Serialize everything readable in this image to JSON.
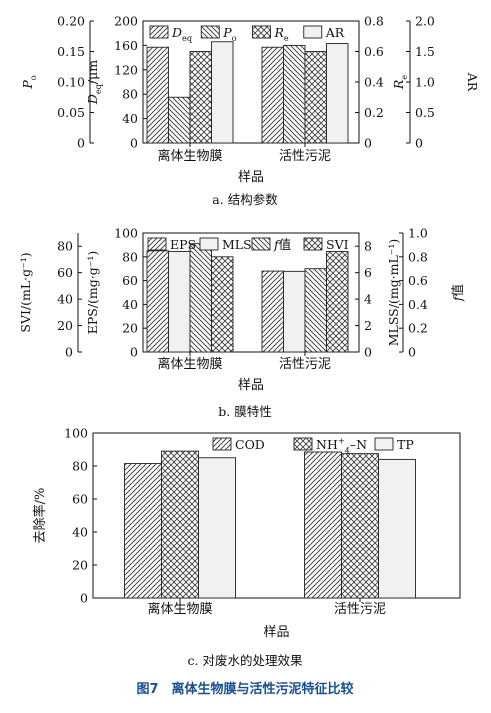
{
  "colors": {
    "caption": "#1a4f8f",
    "axis": "#111111",
    "gridline": "#999999"
  },
  "chart_data": [
    {
      "type": "bar",
      "panel_label": "a. 结构参数",
      "xlabel": "样品",
      "categories": [
        "离体生物膜",
        "活性污泥"
      ],
      "axes": [
        {
          "id": "Po",
          "label": "Po",
          "label_main": "P",
          "label_sub": "o",
          "side": "left-outer",
          "ylim": [
            0,
            0.2
          ],
          "ticks": [
            "0",
            "0.05",
            "0.10",
            "0.15",
            "0.20"
          ]
        },
        {
          "id": "Deq",
          "label": "Deq/μm",
          "label_main": "D",
          "label_sub": "eq",
          "label_tail": "/μm",
          "side": "left-inner",
          "ylim": [
            0,
            200
          ],
          "ticks": [
            "0",
            "40",
            "80",
            "120",
            "160",
            "200"
          ]
        },
        {
          "id": "Re",
          "label": "Re",
          "label_main": "R",
          "label_sub": "e",
          "side": "right-inner",
          "ylim": [
            0,
            0.8
          ],
          "ticks": [
            "0",
            "0.2",
            "0.4",
            "0.6",
            "0.8"
          ]
        },
        {
          "id": "AR",
          "label": "AR",
          "side": "right-outer",
          "ylim": [
            0,
            2.0
          ],
          "ticks": [
            "0",
            "0.5",
            "1.0",
            "1.5",
            "2.0"
          ]
        }
      ],
      "series": [
        {
          "name": "Deq",
          "name_main": "D",
          "name_sub": "eq",
          "axis": "Deq",
          "pattern": "hatch-right",
          "values": [
            157,
            157
          ]
        },
        {
          "name": "Po",
          "name_main": "P",
          "name_sub": "o",
          "axis": "Po",
          "pattern": "hatch-left",
          "values": [
            0.075,
            0.16
          ]
        },
        {
          "name": "Re",
          "name_main": "R",
          "name_sub": "e",
          "axis": "Re",
          "pattern": "cross",
          "values": [
            0.6,
            0.6
          ]
        },
        {
          "name": "AR",
          "axis": "AR",
          "pattern": "plain",
          "values": [
            1.66,
            1.63
          ]
        }
      ],
      "legend_position": "top"
    },
    {
      "type": "bar",
      "panel_label": "b. 膜特性",
      "xlabel": "样品",
      "categories": [
        "离体生物膜",
        "活性污泥"
      ],
      "axes": [
        {
          "id": "SVI",
          "label": "SVI/(mL·g⁻¹)",
          "side": "left-outer",
          "ylim": [
            0,
            90
          ],
          "ticks": [
            "0",
            "20",
            "40",
            "60",
            "80"
          ]
        },
        {
          "id": "EPS",
          "label": "EPS/(mg·g⁻¹)",
          "side": "left-inner",
          "ylim": [
            0,
            100
          ],
          "ticks": [
            "0",
            "20",
            "40",
            "60",
            "80",
            "100"
          ]
        },
        {
          "id": "MLSS",
          "label": "MLSS/(mg·mL⁻¹)",
          "side": "right-inner",
          "ylim": [
            0,
            9
          ],
          "ticks": [
            "0",
            "2",
            "4",
            "6",
            "8"
          ]
        },
        {
          "id": "f",
          "label": "f值",
          "label_main": "f",
          "label_tail": "值",
          "side": "right-outer",
          "ylim": [
            0,
            1.0
          ],
          "ticks": [
            "0",
            "0.2",
            "0.4",
            "0.6",
            "0.8",
            "1.0"
          ]
        }
      ],
      "series": [
        {
          "name": "EPS",
          "axis": "EPS",
          "pattern": "hatch-right",
          "values": [
            85,
            68
          ]
        },
        {
          "name": "MLSS",
          "axis": "MLSS",
          "pattern": "plain",
          "values": [
            7.6,
            6.1
          ]
        },
        {
          "name": "f值",
          "name_main": "f",
          "name_tail": "值",
          "axis": "f",
          "pattern": "hatch-left",
          "values": [
            0.91,
            0.7
          ]
        },
        {
          "name": "SVI",
          "axis": "SVI",
          "pattern": "cross",
          "values": [
            72,
            76
          ]
        }
      ],
      "legend_position": "top"
    },
    {
      "type": "bar",
      "panel_label": "c. 对废水的处理效果",
      "xlabel": "样品",
      "ylabel": "去除率/%",
      "categories": [
        "离体生物膜",
        "活性污泥"
      ],
      "axes": [
        {
          "id": "rate",
          "side": "left",
          "ylim": [
            0,
            100
          ],
          "ticks": [
            "0",
            "20",
            "40",
            "60",
            "80",
            "100"
          ]
        }
      ],
      "series": [
        {
          "name": "COD",
          "axis": "rate",
          "pattern": "hatch-right",
          "values": [
            81.5,
            88.5
          ]
        },
        {
          "name": "NH4+-N",
          "name_main": "NH",
          "name_sub": "4",
          "name_sup": "+",
          "name_tail": "–N",
          "axis": "rate",
          "pattern": "cross",
          "values": [
            89,
            87.5
          ]
        },
        {
          "name": "TP",
          "axis": "rate",
          "pattern": "plain",
          "values": [
            85,
            84
          ]
        }
      ],
      "legend_position": "top"
    }
  ],
  "figure_caption": "图7　离体生物膜与活性污泥特征比较"
}
